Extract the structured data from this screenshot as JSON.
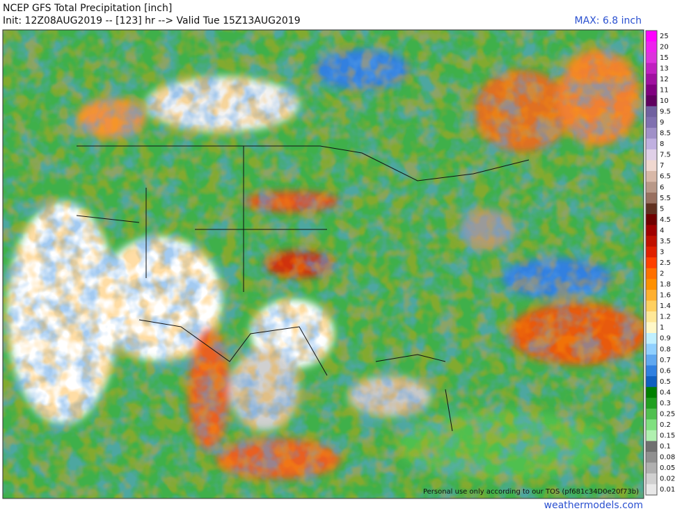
{
  "header": {
    "title": "NCEP GFS Total Precipitation [inch]",
    "init": "Init: 12Z08AUG2019 -- [123] hr --> Valid Tue 15Z13AUG2019",
    "max": "MAX: 6.8 inch"
  },
  "colorbar": [
    {
      "label": "25",
      "color": "#ff00ff"
    },
    {
      "label": "20",
      "color": "#ee22ee"
    },
    {
      "label": "15",
      "color": "#dd33dd"
    },
    {
      "label": "13",
      "color": "#c020c0"
    },
    {
      "label": "12",
      "color": "#a010a0"
    },
    {
      "label": "11",
      "color": "#800080"
    },
    {
      "label": "10",
      "color": "#600060"
    },
    {
      "label": "9.5",
      "color": "#7060a0"
    },
    {
      "label": "9",
      "color": "#8070b0"
    },
    {
      "label": "8.5",
      "color": "#a090c8"
    },
    {
      "label": "8",
      "color": "#c0b0e0"
    },
    {
      "label": "7.5",
      "color": "#e0d0e8"
    },
    {
      "label": "7",
      "color": "#f0d8d0"
    },
    {
      "label": "6.5",
      "color": "#d8b8a8"
    },
    {
      "label": "6",
      "color": "#b89888"
    },
    {
      "label": "5.5",
      "color": "#987060"
    },
    {
      "label": "5",
      "color": "#603020"
    },
    {
      "label": "4.5",
      "color": "#700000"
    },
    {
      "label": "4",
      "color": "#a00000"
    },
    {
      "label": "3.5",
      "color": "#c01000"
    },
    {
      "label": "3",
      "color": "#e02000"
    },
    {
      "label": "2.5",
      "color": "#ff4000"
    },
    {
      "label": "2",
      "color": "#ff7000"
    },
    {
      "label": "1.8",
      "color": "#ff9000"
    },
    {
      "label": "1.6",
      "color": "#ffb030"
    },
    {
      "label": "1.4",
      "color": "#ffd060"
    },
    {
      "label": "1.2",
      "color": "#ffe898"
    },
    {
      "label": "1",
      "color": "#fff8c8"
    },
    {
      "label": "0.9",
      "color": "#c0f0ff"
    },
    {
      "label": "0.8",
      "color": "#90d0ff"
    },
    {
      "label": "0.7",
      "color": "#60a8f0"
    },
    {
      "label": "0.6",
      "color": "#3080e0"
    },
    {
      "label": "0.5",
      "color": "#1060c0"
    },
    {
      "label": "0.4",
      "color": "#008000"
    },
    {
      "label": "0.3",
      "color": "#20a020"
    },
    {
      "label": "0.25",
      "color": "#50c050"
    },
    {
      "label": "0.2",
      "color": "#80e080"
    },
    {
      "label": "0.15",
      "color": "#b0f0b0"
    },
    {
      "label": "0.1",
      "color": "#707070"
    },
    {
      "label": "0.08",
      "color": "#909090"
    },
    {
      "label": "0.05",
      "color": "#b0b0b0"
    },
    {
      "label": "0.02",
      "color": "#d0d0d0"
    },
    {
      "label": "0.01",
      "color": "#e8e8e8"
    }
  ],
  "footer": {
    "notice": "Personal use only according to our TOS (pf681c34D0e20f73b)",
    "site": "weathermodels.com"
  }
}
